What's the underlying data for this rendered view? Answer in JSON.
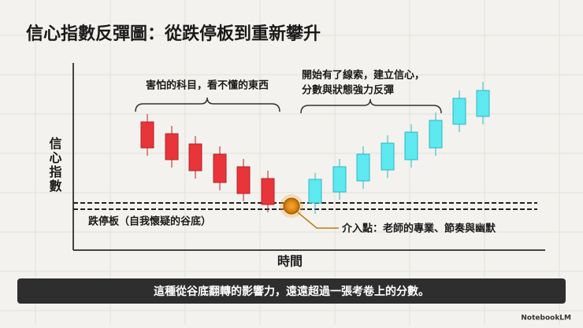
{
  "title": "信心指數反彈圖：從跌停板到重新攀升",
  "axes": {
    "y": "信心指數",
    "x": "時間"
  },
  "annotations": {
    "fear": "害怕的科目，看不懂的東西",
    "rebuild": [
      "開始有了線索，建立信心，",
      "分數與狀態強力反彈"
    ]
  },
  "floor_label": "跌停板（自我懷疑的谷底）",
  "entry_label": "介入點：老師的專業、節奏與幽默",
  "footer": "這種從谷底翻轉的影響力，遠遠超過一張考卷上的分數。",
  "logo": "NotebookLM"
}
